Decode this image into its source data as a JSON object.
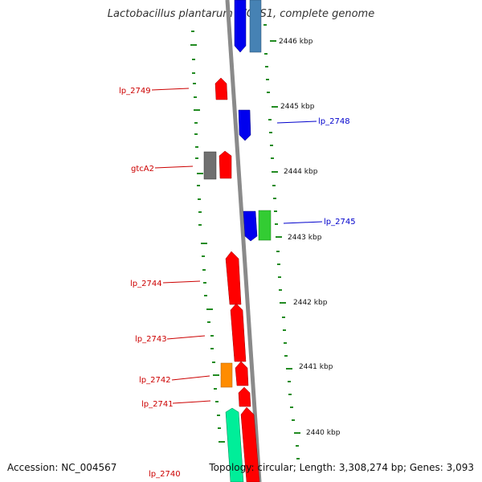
{
  "title": "Lactobacillus plantarum WCFS1, complete genome",
  "footer": {
    "accession": "Accession: NC_004567",
    "topology": "Topology: circular; Length: 3,308,274 bp; Genes: 3,093"
  },
  "scale": {
    "unit": "kbp",
    "ticks": [
      "2446 kbp",
      "2445 kbp",
      "2444 kbp",
      "2443 kbp",
      "2442 kbp",
      "2441 kbp",
      "2440 kbp"
    ]
  },
  "colors": {
    "red": "#ff0000",
    "blue": "#0000ee",
    "steel": "#4682b4",
    "gray": "#707070",
    "green": "#33cc33",
    "orange": "#ff8c00",
    "aqua": "#00ee99",
    "tick": "#228b22",
    "backbone": "#8a8a8a"
  },
  "gene_labels": [
    {
      "text": "lp_2749",
      "side": "left",
      "color": "#cc0000"
    },
    {
      "text": "lp_2748",
      "side": "right",
      "color": "#0000cc"
    },
    {
      "text": "gtcA2",
      "side": "left",
      "color": "#cc0000"
    },
    {
      "text": "lp_2745",
      "side": "right",
      "color": "#0000cc"
    },
    {
      "text": "lp_2744",
      "side": "left",
      "color": "#cc0000"
    },
    {
      "text": "lp_2743",
      "side": "left",
      "color": "#cc0000"
    },
    {
      "text": "lp_2742",
      "side": "left",
      "color": "#cc0000"
    },
    {
      "text": "lp_2741",
      "side": "left",
      "color": "#cc0000"
    },
    {
      "text": "lp_2740",
      "side": "left",
      "color": "#cc0000"
    }
  ]
}
